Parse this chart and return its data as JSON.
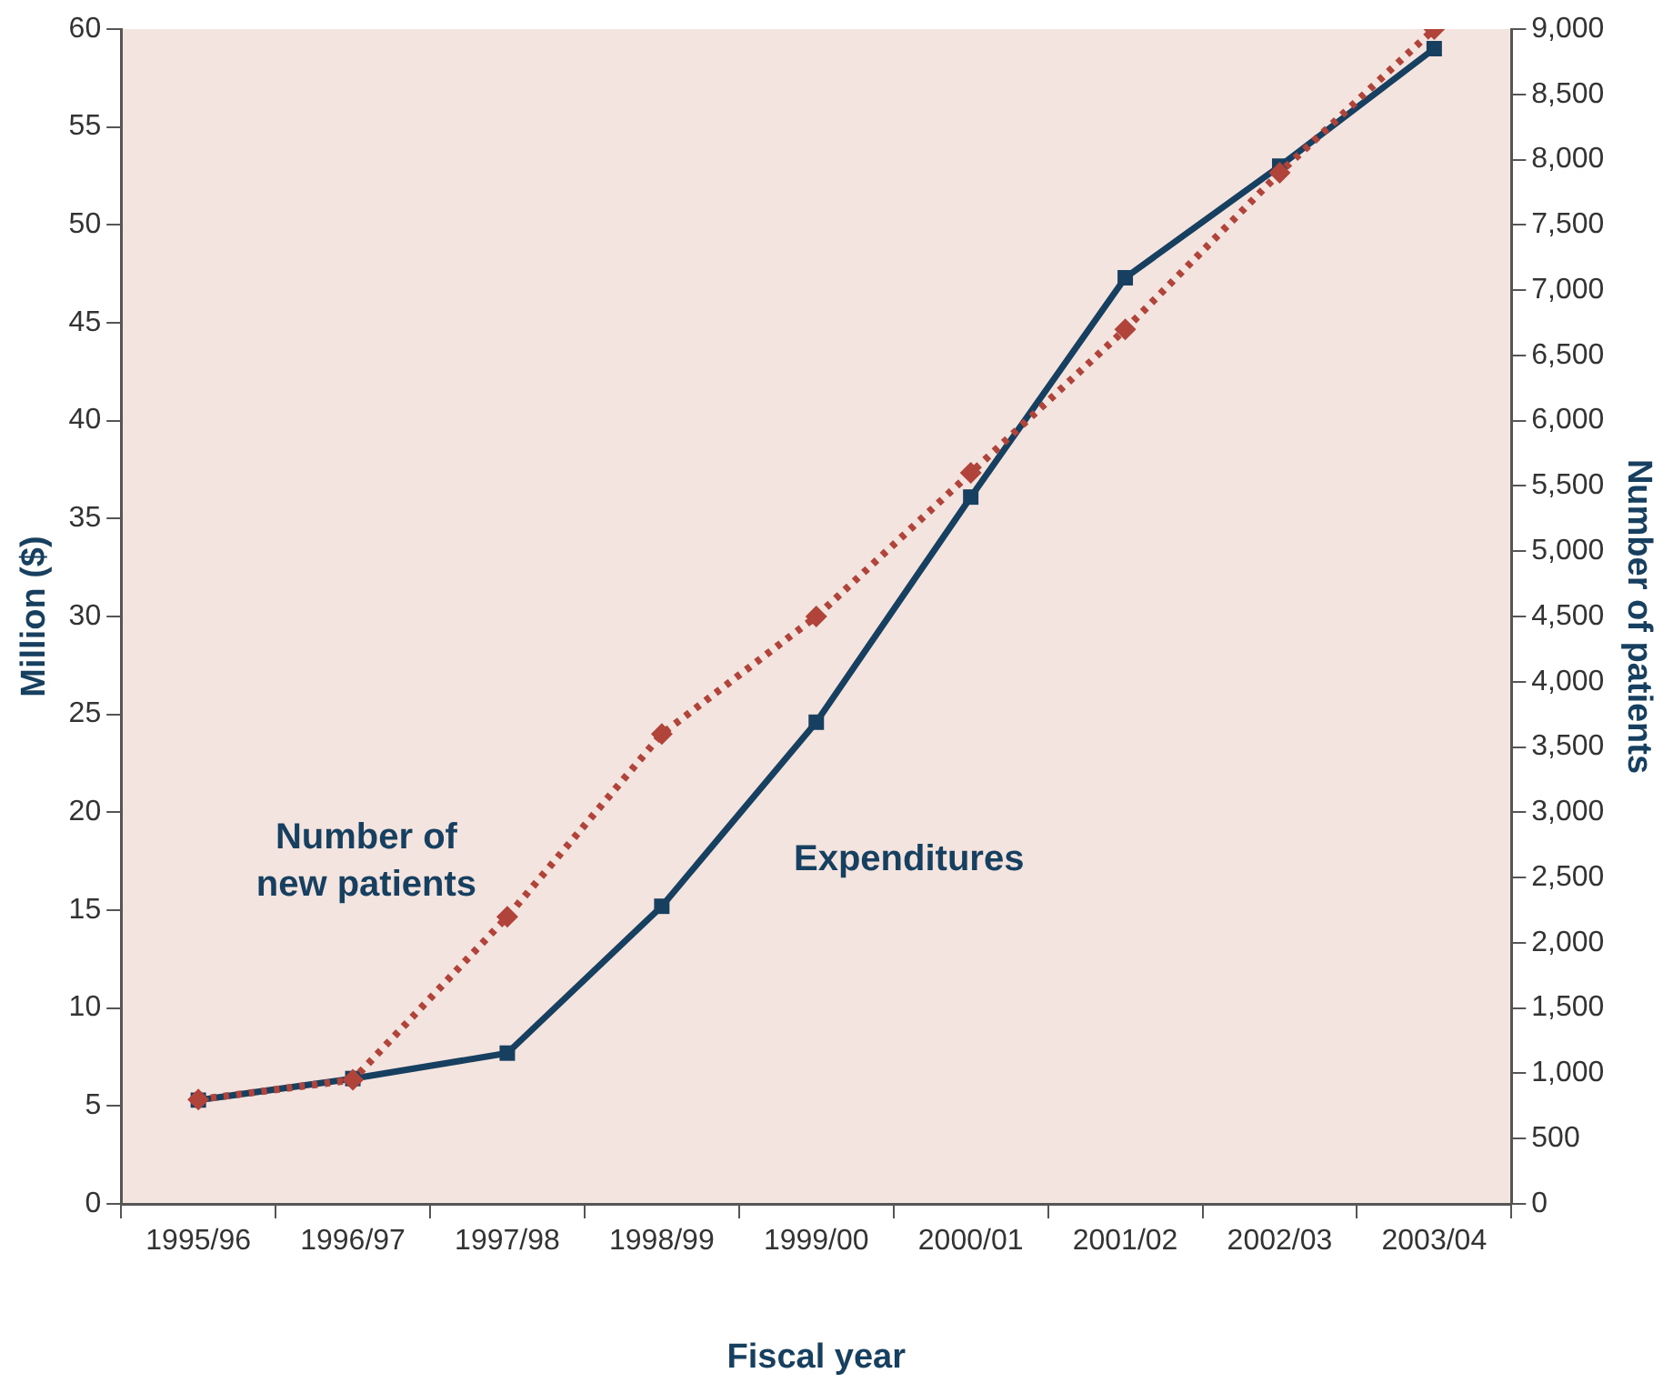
{
  "chart_data": {
    "type": "line",
    "xlabel": "Fiscal year",
    "ylabel": "Million ($)",
    "y2label": "Number of patients",
    "categories": [
      "1995/96",
      "1996/97",
      "1997/98",
      "1998/99",
      "1999/00",
      "2000/01",
      "2001/02",
      "2002/03",
      "2003/04"
    ],
    "series": [
      {
        "name": "Expenditures",
        "color": "#173f5f",
        "values": [
          5.3,
          6.4,
          7.7,
          15.2,
          24.6,
          36.1,
          47.3,
          53,
          59
        ],
        "marker": "square",
        "line_style": "solid"
      },
      {
        "name": "Number of new patients",
        "color": "#b0443a",
        "axis": "y2",
        "values": [
          800,
          950,
          2200,
          3600,
          4500,
          5600,
          6700,
          7900,
          9000
        ],
        "marker": "diamond",
        "line_style": "dotted"
      }
    ],
    "ylim": [
      0,
      60
    ],
    "yticks": [
      0,
      5,
      10,
      15,
      20,
      25,
      30,
      35,
      40,
      45,
      50,
      55,
      60
    ],
    "y2lim": [
      0,
      9000
    ],
    "y2ticks": [
      0,
      500,
      {
        "value": 1000,
        "label": "1,000"
      },
      {
        "value": 1500,
        "label": "1,500"
      },
      {
        "value": 2000,
        "label": "2,000"
      },
      {
        "value": 2500,
        "label": "2,500"
      },
      {
        "value": 3000,
        "label": "3,000"
      },
      {
        "value": 3500,
        "label": "3,500"
      },
      {
        "value": 4000,
        "label": "4,000"
      },
      {
        "value": 4500,
        "label": "4,500"
      },
      {
        "value": 5000,
        "label": "5,000"
      },
      {
        "value": 5500,
        "label": "5,500"
      },
      {
        "value": 6000,
        "label": "6,000"
      },
      {
        "value": 6500,
        "label": "6,500"
      },
      {
        "value": 7000,
        "label": "7,000"
      },
      {
        "value": 7500,
        "label": "7,500"
      },
      {
        "value": 8000,
        "label": "8,000"
      },
      {
        "value": 8500,
        "label": "8,500"
      },
      {
        "value": 9000,
        "label": "9,000"
      }
    ],
    "grid": false,
    "legend": false
  }
}
